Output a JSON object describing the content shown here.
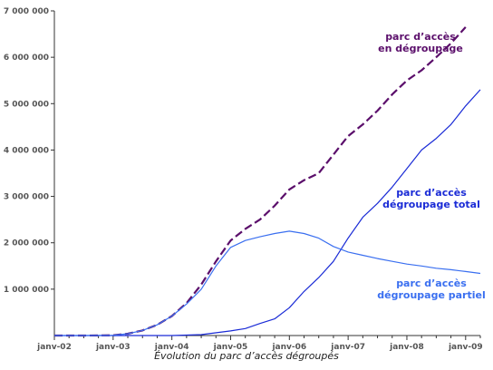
{
  "caption": "Évolution du parc d’accès dégroupés",
  "chart_data": {
    "type": "line",
    "title": "",
    "xlabel": "",
    "ylabel": "",
    "ylim": [
      0,
      7000000
    ],
    "xlim": [
      2002.0,
      2009.25
    ],
    "grid": false,
    "yticks": [
      {
        "value": 1000000,
        "label": "1 000 000"
      },
      {
        "value": 2000000,
        "label": "2 000 000"
      },
      {
        "value": 3000000,
        "label": "3 000 000"
      },
      {
        "value": 4000000,
        "label": "4 000 000"
      },
      {
        "value": 5000000,
        "label": "5 000 000"
      },
      {
        "value": 6000000,
        "label": "6 000 000"
      },
      {
        "value": 7000000,
        "label": "7 000 000"
      }
    ],
    "xticks": [
      {
        "value": 2002.0,
        "label": "janv-02"
      },
      {
        "value": 2003.0,
        "label": "janv-03"
      },
      {
        "value": 2004.0,
        "label": "janv-04"
      },
      {
        "value": 2005.0,
        "label": "janv-05"
      },
      {
        "value": 2006.0,
        "label": "janv-06"
      },
      {
        "value": 2007.0,
        "label": "janv-07"
      },
      {
        "value": 2008.0,
        "label": "janv-08"
      },
      {
        "value": 2009.0,
        "label": "janv-09"
      }
    ],
    "series": [
      {
        "name": "parc d’accès en dégroupage",
        "label_lines": [
          "parc d’accès",
          "en dégroupage"
        ],
        "color": "#5b0f6b",
        "dash": true,
        "points": [
          [
            2002.0,
            0
          ],
          [
            2002.5,
            0
          ],
          [
            2003.0,
            5000
          ],
          [
            2003.25,
            40000
          ],
          [
            2003.5,
            110000
          ],
          [
            2003.75,
            230000
          ],
          [
            2004.0,
            420000
          ],
          [
            2004.25,
            700000
          ],
          [
            2004.5,
            1100000
          ],
          [
            2004.75,
            1600000
          ],
          [
            2005.0,
            2050000
          ],
          [
            2005.25,
            2300000
          ],
          [
            2005.5,
            2500000
          ],
          [
            2005.75,
            2800000
          ],
          [
            2006.0,
            3150000
          ],
          [
            2006.25,
            3350000
          ],
          [
            2006.5,
            3500000
          ],
          [
            2006.75,
            3900000
          ],
          [
            2007.0,
            4300000
          ],
          [
            2007.25,
            4550000
          ],
          [
            2007.5,
            4850000
          ],
          [
            2007.75,
            5200000
          ],
          [
            2008.0,
            5500000
          ],
          [
            2008.25,
            5720000
          ],
          [
            2008.5,
            6000000
          ],
          [
            2008.75,
            6300000
          ],
          [
            2009.0,
            6650000
          ]
        ]
      },
      {
        "name": "parc d’accès dégroupage total",
        "label_lines": [
          "parc d’accès",
          "dégroupage total"
        ],
        "color": "#1a2bd6",
        "dash": false,
        "points": [
          [
            2002.0,
            0
          ],
          [
            2003.0,
            0
          ],
          [
            2004.0,
            0
          ],
          [
            2004.5,
            20000
          ],
          [
            2005.0,
            100000
          ],
          [
            2005.25,
            150000
          ],
          [
            2005.5,
            260000
          ],
          [
            2005.75,
            360000
          ],
          [
            2006.0,
            600000
          ],
          [
            2006.25,
            950000
          ],
          [
            2006.5,
            1250000
          ],
          [
            2006.75,
            1600000
          ],
          [
            2007.0,
            2100000
          ],
          [
            2007.25,
            2550000
          ],
          [
            2007.5,
            2850000
          ],
          [
            2007.75,
            3200000
          ],
          [
            2008.0,
            3600000
          ],
          [
            2008.25,
            4000000
          ],
          [
            2008.5,
            4250000
          ],
          [
            2008.75,
            4550000
          ],
          [
            2009.0,
            4950000
          ],
          [
            2009.25,
            5300000
          ]
        ]
      },
      {
        "name": "parc d’accès dégroupage partiel",
        "label_lines": [
          "parc d’accès",
          "dégroupage partiel"
        ],
        "color": "#3a6ff0",
        "dash": false,
        "points": [
          [
            2002.0,
            0
          ],
          [
            2002.5,
            0
          ],
          [
            2003.0,
            5000
          ],
          [
            2003.25,
            40000
          ],
          [
            2003.5,
            110000
          ],
          [
            2003.75,
            230000
          ],
          [
            2004.0,
            420000
          ],
          [
            2004.25,
            680000
          ],
          [
            2004.5,
            1000000
          ],
          [
            2004.75,
            1500000
          ],
          [
            2005.0,
            1900000
          ],
          [
            2005.25,
            2050000
          ],
          [
            2005.5,
            2130000
          ],
          [
            2005.75,
            2200000
          ],
          [
            2006.0,
            2250000
          ],
          [
            2006.25,
            2200000
          ],
          [
            2006.5,
            2100000
          ],
          [
            2006.75,
            1920000
          ],
          [
            2007.0,
            1800000
          ],
          [
            2007.25,
            1730000
          ],
          [
            2007.5,
            1660000
          ],
          [
            2007.75,
            1600000
          ],
          [
            2008.0,
            1540000
          ],
          [
            2008.25,
            1500000
          ],
          [
            2008.5,
            1450000
          ],
          [
            2008.75,
            1420000
          ],
          [
            2009.0,
            1380000
          ],
          [
            2009.25,
            1340000
          ]
        ]
      }
    ]
  }
}
